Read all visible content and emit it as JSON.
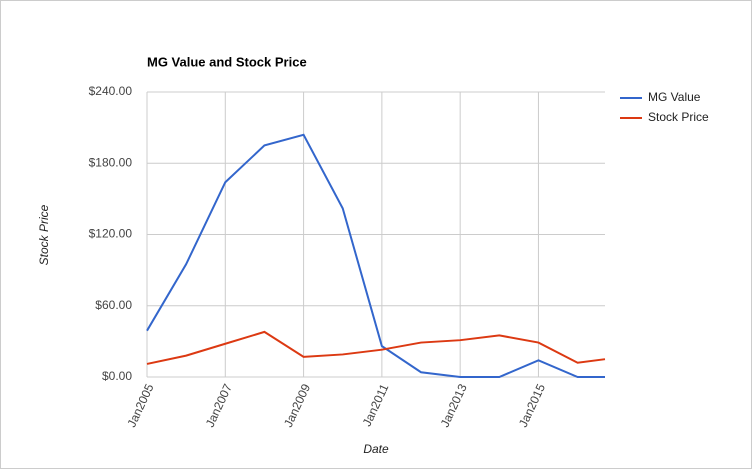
{
  "chart_data": {
    "type": "line",
    "title": "MG Value and Stock Price",
    "x": [
      2005,
      2006,
      2007,
      2008,
      2009,
      2010,
      2011,
      2012,
      2013,
      2014,
      2015,
      2016,
      2016.7
    ],
    "series": [
      {
        "name": "MG Value",
        "color": "#3366cc",
        "values": [
          39,
          95,
          164,
          195,
          204,
          142,
          26,
          4,
          0,
          0,
          14,
          0,
          0
        ]
      },
      {
        "name": "Stock Price",
        "color": "#dc3912",
        "values": [
          11,
          18,
          28,
          38,
          17,
          19,
          23,
          29,
          31,
          35,
          29,
          12,
          15
        ]
      }
    ],
    "xlim": [
      2005,
      2016.7
    ],
    "xticks": [
      {
        "value": 2005,
        "label": "Jan2005"
      },
      {
        "value": 2007,
        "label": "Jan2007"
      },
      {
        "value": 2009,
        "label": "Jan2009"
      },
      {
        "value": 2011,
        "label": "Jan2011"
      },
      {
        "value": 2013,
        "label": "Jan2013"
      },
      {
        "value": 2015,
        "label": "Jan2015"
      }
    ],
    "ylim": [
      0,
      240
    ],
    "yticks": [
      {
        "value": 0,
        "label": "$0.00"
      },
      {
        "value": 60,
        "label": "$60.00"
      },
      {
        "value": 120,
        "label": "$120.00"
      },
      {
        "value": 180,
        "label": "$180.00"
      },
      {
        "value": 240,
        "label": "$240.00"
      }
    ],
    "xlabel": "Date",
    "ylabel": "Stock Price",
    "grid": true,
    "legend": "right"
  }
}
